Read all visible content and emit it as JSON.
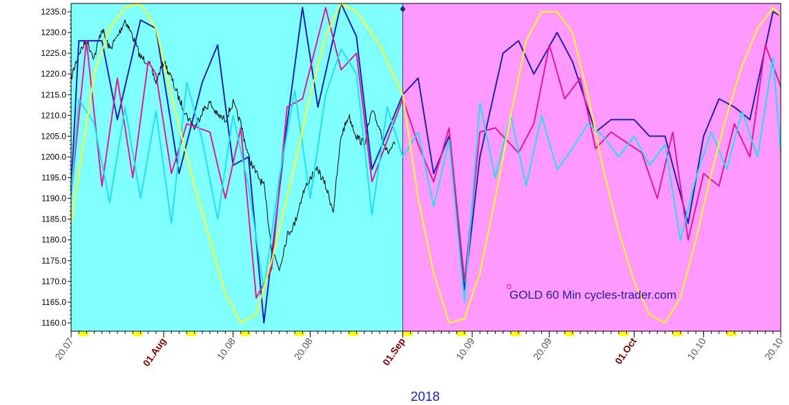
{
  "chart_data": {
    "type": "line",
    "title": "",
    "annotation": "GOLD 60 Min cycles-trader.com",
    "year_label": "2018",
    "xlabel": "",
    "ylabel": "",
    "x_range": [
      "2018-07-20",
      "2018-10-20"
    ],
    "ylim": [
      1158,
      1237
    ],
    "y_ticks": [
      1160.0,
      1165.0,
      1170.0,
      1175.0,
      1180.0,
      1185.0,
      1190.0,
      1195.0,
      1200.0,
      1205.0,
      1210.0,
      1215.0,
      1220.0,
      1225.0,
      1230.0,
      1235.0
    ],
    "x_ticks": [
      {
        "date": "2018-07-20",
        "label": "20.07",
        "highlight": false
      },
      {
        "date": "2018-08-01",
        "label": "01.Aug",
        "highlight": true
      },
      {
        "date": "2018-08-10",
        "label": "10.08",
        "highlight": false
      },
      {
        "date": "2018-08-20",
        "label": "20.08",
        "highlight": false
      },
      {
        "date": "2018-09-01",
        "label": "01.Sep",
        "highlight": true
      },
      {
        "date": "2018-09-10",
        "label": "10.09",
        "highlight": false
      },
      {
        "date": "2018-09-20",
        "label": "20.09",
        "highlight": false
      },
      {
        "date": "2018-10-01",
        "label": "01.Oct",
        "highlight": true
      },
      {
        "date": "2018-10-10",
        "label": "10.10",
        "highlight": false
      },
      {
        "date": "2018-10-20",
        "label": "20.10",
        "highlight": false
      }
    ],
    "regions": [
      {
        "name": "history",
        "from": "2018-07-20",
        "to": "2018-09-01",
        "color": "#80FFFF"
      },
      {
        "name": "forecast",
        "from": "2018-09-01",
        "to": "2018-10-20",
        "color": "#FF99FF"
      }
    ],
    "weekend_markers": [
      {
        "from": "2018-07-21",
        "to": "2018-07-23"
      },
      {
        "from": "2018-07-28",
        "to": "2018-07-30"
      },
      {
        "from": "2018-08-04",
        "to": "2018-08-06"
      },
      {
        "from": "2018-08-11",
        "to": "2018-08-13"
      },
      {
        "from": "2018-08-18",
        "to": "2018-08-20"
      },
      {
        "from": "2018-08-25",
        "to": "2018-08-27"
      },
      {
        "from": "2018-09-01",
        "to": "2018-09-03"
      },
      {
        "from": "2018-09-08",
        "to": "2018-09-10"
      },
      {
        "from": "2018-09-15",
        "to": "2018-09-17"
      },
      {
        "from": "2018-09-22",
        "to": "2018-09-24"
      },
      {
        "from": "2018-09-29",
        "to": "2018-10-01"
      },
      {
        "from": "2018-10-06",
        "to": "2018-10-08"
      },
      {
        "from": "2018-10-13",
        "to": "2018-10-15"
      }
    ],
    "colors": {
      "history_bg": "#80FFFF",
      "forecast_bg": "#FF99FF",
      "price": "#000000",
      "navy": "#1E1EB4",
      "magenta": "#E0189A",
      "cyan": "#20E0F0",
      "yellow": "#FFFF1E",
      "tick_highlight": "#800000",
      "tick_normal": "#555555",
      "year": "#1E1EC8",
      "annotation": "#1E1E96",
      "weekend": "#FFFF00"
    },
    "series": [
      {
        "role": "price",
        "color": "#000000",
        "points": [
          [
            "2018-07-20",
            1219
          ],
          [
            "2018-07-21",
            1225
          ],
          [
            "2018-07-22",
            1228
          ],
          [
            "2018-07-23",
            1224
          ],
          [
            "2018-07-24",
            1231
          ],
          [
            "2018-07-25",
            1226
          ],
          [
            "2018-07-26",
            1229
          ],
          [
            "2018-07-27",
            1233
          ],
          [
            "2018-07-28",
            1229
          ],
          [
            "2018-07-29",
            1224
          ],
          [
            "2018-07-30",
            1223
          ],
          [
            "2018-07-31",
            1218
          ],
          [
            "2018-08-01",
            1223
          ],
          [
            "2018-08-02",
            1219
          ],
          [
            "2018-08-03",
            1214
          ],
          [
            "2018-08-04",
            1210
          ],
          [
            "2018-08-05",
            1207
          ],
          [
            "2018-08-06",
            1211
          ],
          [
            "2018-08-07",
            1213
          ],
          [
            "2018-08-08",
            1210
          ],
          [
            "2018-08-09",
            1209
          ],
          [
            "2018-08-10",
            1213
          ],
          [
            "2018-08-11",
            1208
          ],
          [
            "2018-08-12",
            1200
          ],
          [
            "2018-08-13",
            1196
          ],
          [
            "2018-08-14",
            1193
          ],
          [
            "2018-08-15",
            1178
          ],
          [
            "2018-08-16",
            1173
          ],
          [
            "2018-08-17",
            1181
          ],
          [
            "2018-08-18",
            1184
          ],
          [
            "2018-08-19",
            1191
          ],
          [
            "2018-08-20",
            1195
          ],
          [
            "2018-08-21",
            1197
          ],
          [
            "2018-08-22",
            1193
          ],
          [
            "2018-08-23",
            1187
          ],
          [
            "2018-08-24",
            1205
          ],
          [
            "2018-08-25",
            1210
          ],
          [
            "2018-08-26",
            1205
          ],
          [
            "2018-08-27",
            1203
          ],
          [
            "2018-08-28",
            1211
          ],
          [
            "2018-08-29",
            1207
          ],
          [
            "2018-08-30",
            1201
          ],
          [
            "2018-08-31",
            1203
          ]
        ]
      },
      {
        "role": "navy cycle",
        "color": "#1E1EB4",
        "points": [
          [
            "2018-07-20",
            1192
          ],
          [
            "2018-07-21",
            1228
          ],
          [
            "2018-07-24",
            1228
          ],
          [
            "2018-07-26",
            1209
          ],
          [
            "2018-07-29",
            1233
          ],
          [
            "2018-07-31",
            1231
          ],
          [
            "2018-08-03",
            1196
          ],
          [
            "2018-08-06",
            1218
          ],
          [
            "2018-08-08",
            1227
          ],
          [
            "2018-08-10",
            1198
          ],
          [
            "2018-08-12",
            1200
          ],
          [
            "2018-08-14",
            1160
          ],
          [
            "2018-08-17",
            1208
          ],
          [
            "2018-08-19",
            1236
          ],
          [
            "2018-08-21",
            1212
          ],
          [
            "2018-08-24",
            1237
          ],
          [
            "2018-08-26",
            1229
          ],
          [
            "2018-08-28",
            1197
          ],
          [
            "2018-09-01",
            1215
          ],
          [
            "2018-09-03",
            1219
          ],
          [
            "2018-09-05",
            1196
          ],
          [
            "2018-09-07",
            1205
          ],
          [
            "2018-09-09",
            1168
          ],
          [
            "2018-09-11",
            1200
          ],
          [
            "2018-09-14",
            1225
          ],
          [
            "2018-09-16",
            1228
          ],
          [
            "2018-09-18",
            1220
          ],
          [
            "2018-09-21",
            1230
          ],
          [
            "2018-09-23",
            1223
          ],
          [
            "2018-09-26",
            1206
          ],
          [
            "2018-09-28",
            1209
          ],
          [
            "2018-10-01",
            1209
          ],
          [
            "2018-10-03",
            1205
          ],
          [
            "2018-10-05",
            1205
          ],
          [
            "2018-10-08",
            1184
          ],
          [
            "2018-10-10",
            1205
          ],
          [
            "2018-10-12",
            1214
          ],
          [
            "2018-10-14",
            1212
          ],
          [
            "2018-10-16",
            1209
          ],
          [
            "2018-10-19",
            1235
          ],
          [
            "2018-10-20",
            1234
          ]
        ]
      },
      {
        "role": "magenta cycle",
        "color": "#E0189A",
        "points": [
          [
            "2018-07-20",
            1191
          ],
          [
            "2018-07-22",
            1228
          ],
          [
            "2018-07-24",
            1193
          ],
          [
            "2018-07-26",
            1219
          ],
          [
            "2018-07-28",
            1195
          ],
          [
            "2018-07-30",
            1223
          ],
          [
            "2018-07-31",
            1220
          ],
          [
            "2018-08-02",
            1196
          ],
          [
            "2018-08-04",
            1208
          ],
          [
            "2018-08-07",
            1206
          ],
          [
            "2018-08-09",
            1190
          ],
          [
            "2018-08-11",
            1207
          ],
          [
            "2018-08-13",
            1166
          ],
          [
            "2018-08-15",
            1173
          ],
          [
            "2018-08-17",
            1212
          ],
          [
            "2018-08-19",
            1214
          ],
          [
            "2018-08-22",
            1236
          ],
          [
            "2018-08-24",
            1221
          ],
          [
            "2018-08-26",
            1225
          ],
          [
            "2018-08-28",
            1194
          ],
          [
            "2018-09-01",
            1214
          ],
          [
            "2018-09-03",
            1203
          ],
          [
            "2018-09-05",
            1194
          ],
          [
            "2018-09-07",
            1207
          ],
          [
            "2018-09-09",
            1170
          ],
          [
            "2018-09-11",
            1206
          ],
          [
            "2018-09-13",
            1207
          ],
          [
            "2018-09-16",
            1201
          ],
          [
            "2018-09-18",
            1208
          ],
          [
            "2018-09-20",
            1227
          ],
          [
            "2018-09-22",
            1214
          ],
          [
            "2018-09-24",
            1219
          ],
          [
            "2018-09-26",
            1202
          ],
          [
            "2018-09-28",
            1206
          ],
          [
            "2018-10-02",
            1201
          ],
          [
            "2018-10-04",
            1190
          ],
          [
            "2018-10-06",
            1206
          ],
          [
            "2018-10-08",
            1180
          ],
          [
            "2018-10-10",
            1196
          ],
          [
            "2018-10-12",
            1193
          ],
          [
            "2018-10-14",
            1208
          ],
          [
            "2018-10-16",
            1200
          ],
          [
            "2018-10-18",
            1227
          ],
          [
            "2018-10-20",
            1217
          ]
        ]
      },
      {
        "role": "cyan cycle",
        "color": "#20E0F0",
        "points": [
          [
            "2018-07-20",
            1191
          ],
          [
            "2018-07-21",
            1214
          ],
          [
            "2018-07-23",
            1208
          ],
          [
            "2018-07-25",
            1189
          ],
          [
            "2018-07-27",
            1212
          ],
          [
            "2018-07-29",
            1190
          ],
          [
            "2018-07-31",
            1211
          ],
          [
            "2018-08-02",
            1184
          ],
          [
            "2018-08-04",
            1218
          ],
          [
            "2018-08-06",
            1204
          ],
          [
            "2018-08-08",
            1185
          ],
          [
            "2018-08-10",
            1210
          ],
          [
            "2018-08-12",
            1193
          ],
          [
            "2018-08-14",
            1168
          ],
          [
            "2018-08-16",
            1195
          ],
          [
            "2018-08-18",
            1216
          ],
          [
            "2018-08-20",
            1190
          ],
          [
            "2018-08-22",
            1215
          ],
          [
            "2018-08-24",
            1226
          ],
          [
            "2018-08-26",
            1220
          ],
          [
            "2018-08-28",
            1186
          ],
          [
            "2018-08-30",
            1212
          ],
          [
            "2018-09-01",
            1200
          ],
          [
            "2018-09-03",
            1206
          ],
          [
            "2018-09-05",
            1188
          ],
          [
            "2018-09-07",
            1204
          ],
          [
            "2018-09-09",
            1165
          ],
          [
            "2018-09-11",
            1213
          ],
          [
            "2018-09-13",
            1195
          ],
          [
            "2018-09-15",
            1210
          ],
          [
            "2018-09-17",
            1193
          ],
          [
            "2018-09-19",
            1210
          ],
          [
            "2018-09-21",
            1197
          ],
          [
            "2018-09-23",
            1202
          ],
          [
            "2018-09-25",
            1208
          ],
          [
            "2018-09-27",
            1205
          ],
          [
            "2018-09-29",
            1200
          ],
          [
            "2018-10-01",
            1205
          ],
          [
            "2018-10-03",
            1198
          ],
          [
            "2018-10-05",
            1203
          ],
          [
            "2018-10-07",
            1180
          ],
          [
            "2018-10-09",
            1195
          ],
          [
            "2018-10-11",
            1206
          ],
          [
            "2018-10-13",
            1197
          ],
          [
            "2018-10-15",
            1211
          ],
          [
            "2018-10-17",
            1200
          ],
          [
            "2018-10-19",
            1224
          ],
          [
            "2018-10-20",
            1201
          ]
        ]
      },
      {
        "role": "yellow cycle",
        "color": "#FFFF1E",
        "points": [
          [
            "2018-07-20",
            1184
          ],
          [
            "2018-07-21",
            1196
          ],
          [
            "2018-07-23",
            1220
          ],
          [
            "2018-07-25",
            1231
          ],
          [
            "2018-07-27",
            1236
          ],
          [
            "2018-07-29",
            1237
          ],
          [
            "2018-07-31",
            1231
          ],
          [
            "2018-08-02",
            1215
          ],
          [
            "2018-08-04",
            1200
          ],
          [
            "2018-08-07",
            1180
          ],
          [
            "2018-08-09",
            1167
          ],
          [
            "2018-08-11",
            1160
          ],
          [
            "2018-08-13",
            1162
          ],
          [
            "2018-08-15",
            1175
          ],
          [
            "2018-08-18",
            1198
          ],
          [
            "2018-08-20",
            1215
          ],
          [
            "2018-08-22",
            1229
          ],
          [
            "2018-08-24",
            1237
          ],
          [
            "2018-08-26",
            1235
          ],
          [
            "2018-08-29",
            1227
          ],
          [
            "2018-09-01",
            1215
          ],
          [
            "2018-09-03",
            1190
          ],
          [
            "2018-09-05",
            1172
          ],
          [
            "2018-09-07",
            1160
          ],
          [
            "2018-09-09",
            1161
          ],
          [
            "2018-09-11",
            1172
          ],
          [
            "2018-09-13",
            1190
          ],
          [
            "2018-09-15",
            1210
          ],
          [
            "2018-09-17",
            1228
          ],
          [
            "2018-09-19",
            1235
          ],
          [
            "2018-09-21",
            1235
          ],
          [
            "2018-09-23",
            1230
          ],
          [
            "2018-09-25",
            1215
          ],
          [
            "2018-09-27",
            1197
          ],
          [
            "2018-09-29",
            1182
          ],
          [
            "2018-10-01",
            1170
          ],
          [
            "2018-10-03",
            1162
          ],
          [
            "2018-10-05",
            1160
          ],
          [
            "2018-10-07",
            1166
          ],
          [
            "2018-10-09",
            1180
          ],
          [
            "2018-10-11",
            1196
          ],
          [
            "2018-10-13",
            1210
          ],
          [
            "2018-10-15",
            1222
          ],
          [
            "2018-10-17",
            1231
          ],
          [
            "2018-10-19",
            1236
          ],
          [
            "2018-10-20",
            1234
          ]
        ]
      }
    ]
  }
}
